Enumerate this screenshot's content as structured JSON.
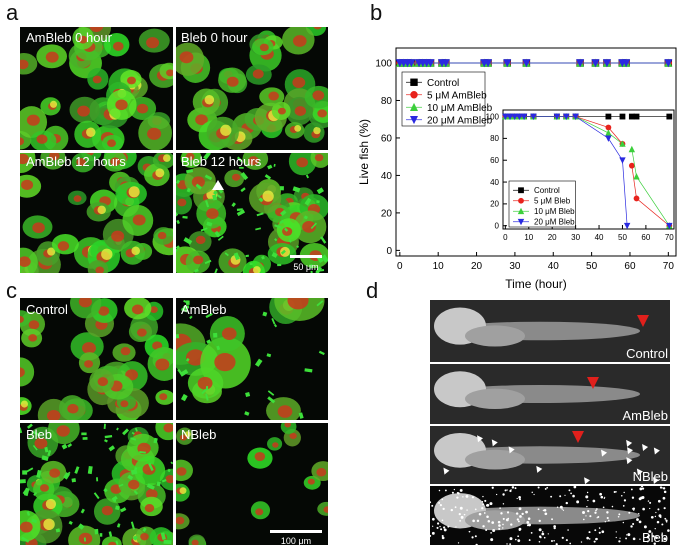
{
  "panel_labels": [
    "a",
    "b",
    "c",
    "d"
  ],
  "panel_a": {
    "images": [
      "AmBleb  0 hour",
      "Bleb  0 hour",
      "AmBleb 12 hours",
      "Bleb 12 hours"
    ],
    "scale_bar": "50 μm"
  },
  "panel_c": {
    "images": [
      "Control",
      "AmBleb",
      "Bleb",
      "NBleb"
    ],
    "scale_bar": "100 μm"
  },
  "panel_d": {
    "images": [
      "Control",
      "AmBleb",
      "NBleb",
      "Bleb"
    ]
  },
  "chart_data": [
    {
      "type": "line",
      "x_label": "Time (hour)",
      "y_label": "Live fish (%)",
      "x": [
        0,
        1,
        2,
        3,
        5,
        6,
        7,
        8,
        11,
        12,
        22,
        23,
        28,
        33,
        47,
        51,
        54,
        58,
        59,
        70
      ],
      "xlim": [
        -1,
        72
      ],
      "ylim": [
        -3,
        108
      ],
      "xticks": [
        0,
        10,
        20,
        30,
        40,
        50,
        60,
        70
      ],
      "yticks": [
        0,
        20,
        40,
        60,
        80,
        100
      ],
      "legend": "upper left",
      "series": [
        {
          "name": "Control",
          "color": "#000000",
          "marker": "square",
          "values": [
            100,
            100,
            100,
            100,
            100,
            100,
            100,
            100,
            100,
            100,
            100,
            100,
            100,
            100,
            100,
            100,
            100,
            100,
            100,
            100
          ]
        },
        {
          "name": "5 μM   AmBleb",
          "color": "#e8231d",
          "marker": "circle",
          "values": [
            100,
            100,
            100,
            100,
            100,
            100,
            100,
            100,
            100,
            100,
            100,
            100,
            100,
            100,
            100,
            100,
            100,
            100,
            100,
            100
          ]
        },
        {
          "name": "10 μM AmBleb",
          "color": "#3ccf3c",
          "marker": "triangle-up",
          "values": [
            100,
            100,
            100,
            100,
            100,
            100,
            100,
            100,
            100,
            100,
            100,
            100,
            100,
            100,
            100,
            100,
            100,
            100,
            100,
            100
          ]
        },
        {
          "name": "20 μM AmBleb",
          "color": "#2a2ae0",
          "marker": "triangle-down",
          "values": [
            100,
            100,
            100,
            100,
            100,
            100,
            100,
            100,
            100,
            100,
            100,
            100,
            100,
            100,
            100,
            100,
            100,
            100,
            100,
            100
          ]
        }
      ]
    },
    {
      "type": "line",
      "x": [
        0,
        2,
        4,
        6,
        8,
        12,
        22,
        26,
        30,
        44,
        50,
        52,
        54,
        56,
        70
      ],
      "xlim": [
        -1,
        72
      ],
      "ylim": [
        -3,
        106
      ],
      "xticks": [
        0,
        10,
        20,
        30,
        40,
        50,
        60,
        70
      ],
      "yticks": [
        0,
        20,
        40,
        60,
        80,
        100
      ],
      "legend": "lower left",
      "series": [
        {
          "name": "Control",
          "color": "#000000",
          "marker": "square",
          "values": [
            100,
            100,
            100,
            100,
            100,
            100,
            100,
            100,
            100,
            100,
            100,
            null,
            100,
            100,
            100
          ]
        },
        {
          "name": "5 μM   Bleb",
          "color": "#e8231d",
          "marker": "circle",
          "values": [
            100,
            100,
            100,
            100,
            100,
            100,
            100,
            100,
            100,
            90,
            75,
            null,
            55,
            25,
            0
          ]
        },
        {
          "name": "10 μM Bleb",
          "color": "#3ccf3c",
          "marker": "triangle-up",
          "values": [
            100,
            100,
            100,
            100,
            100,
            100,
            100,
            100,
            100,
            85,
            75,
            null,
            70,
            45,
            0
          ]
        },
        {
          "name": "20 μM Bleb",
          "color": "#2a2ae0",
          "marker": "triangle-down",
          "values": [
            100,
            100,
            100,
            100,
            100,
            100,
            100,
            100,
            100,
            80,
            60,
            0,
            null,
            null,
            0
          ]
        }
      ]
    }
  ]
}
